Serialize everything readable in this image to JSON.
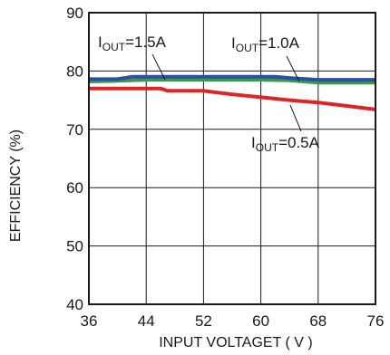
{
  "chart_data": {
    "type": "line",
    "xlabel": "INPUT VOLTAGET ( V )",
    "ylabel": "EFFICIENCY (%)",
    "xlim": [
      36,
      76
    ],
    "ylim": [
      40,
      90
    ],
    "x_ticks": [
      "36",
      "44",
      "52",
      "60",
      "68",
      "76"
    ],
    "y_ticks": [
      "40",
      "50",
      "60",
      "70",
      "80",
      "90"
    ],
    "grid": true,
    "series": [
      {
        "name": "I_OUT=1.5A",
        "label_main": "I",
        "label_sub": "OUT",
        "label_value": "=1.5A",
        "color": "#2b4fa8",
        "x": [
          36,
          40,
          42,
          44,
          48,
          52,
          56,
          60,
          62,
          64,
          68,
          72,
          76
        ],
        "y": [
          78.6,
          78.6,
          79.0,
          79.0,
          79.0,
          79.0,
          79.0,
          79.0,
          79.0,
          78.8,
          78.5,
          78.5,
          78.5
        ]
      },
      {
        "name": "I_OUT=1.0A",
        "label_main": "I",
        "label_sub": "OUT",
        "label_value": "=1.0A",
        "color": "#3b9a4a",
        "x": [
          36,
          40,
          44,
          48,
          52,
          56,
          60,
          64,
          68,
          72,
          76
        ],
        "y": [
          78.2,
          78.3,
          78.5,
          78.5,
          78.5,
          78.5,
          78.5,
          78.4,
          78.0,
          78.0,
          78.0
        ]
      },
      {
        "name": "I_OUT=0.5A",
        "label_main": "I",
        "label_sub": "OUT",
        "label_value": "=0.5A",
        "color": "#e02424",
        "x": [
          36,
          40,
          44,
          46,
          47,
          52,
          56,
          60,
          64,
          68,
          72,
          76
        ],
        "y": [
          77.0,
          77.0,
          77.0,
          77.0,
          76.6,
          76.6,
          76.0,
          75.5,
          75.0,
          74.6,
          74.0,
          73.4
        ]
      }
    ]
  }
}
